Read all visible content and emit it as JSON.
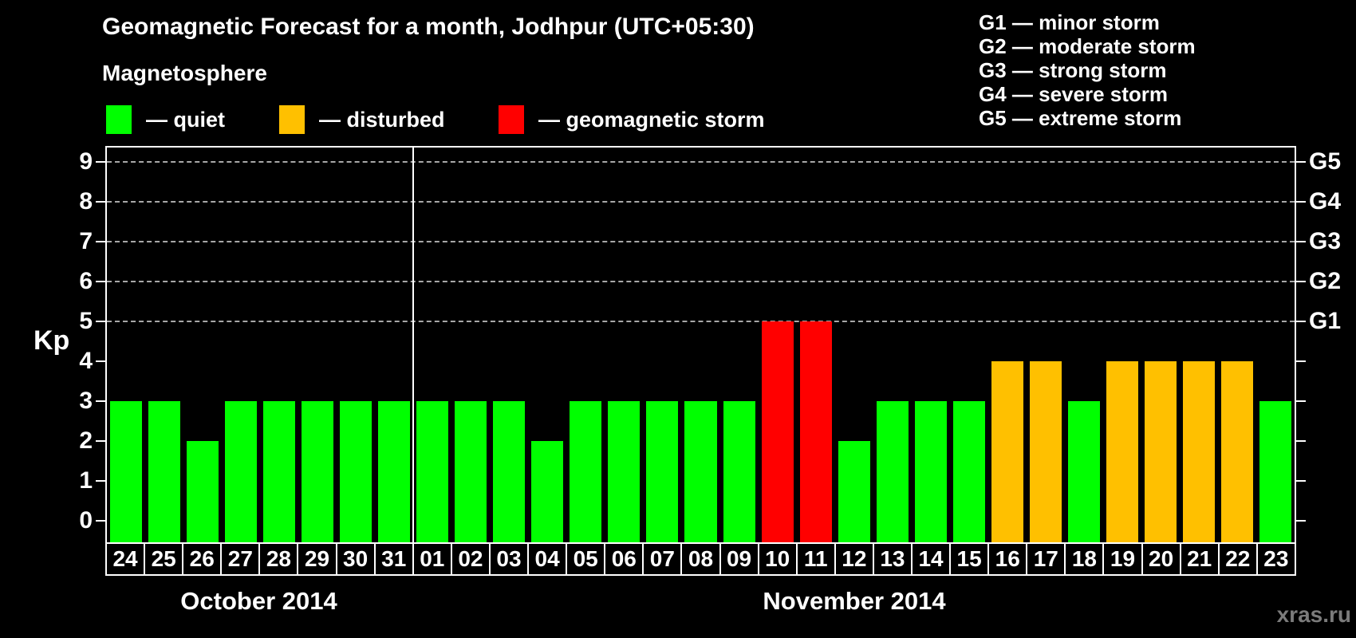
{
  "title": "Geomagnetic Forecast for a month, Jodhpur (UTC+05:30)",
  "legend": {
    "heading": "Magnetosphere",
    "items": [
      {
        "name": "quiet",
        "label": "— quiet",
        "color": "#00ff00"
      },
      {
        "name": "disturbed",
        "label": "— disturbed",
        "color": "#ffc000"
      },
      {
        "name": "storm",
        "label": "— geomagnetic storm",
        "color": "#ff0000"
      }
    ]
  },
  "g_scale_legend": [
    "G1 — minor storm",
    "G2 — moderate storm",
    "G3 — strong storm",
    "G4 — severe storm",
    "G5 — extreme storm"
  ],
  "watermark": "xras.ru",
  "chart_data": {
    "type": "bar",
    "ylabel": "Kp",
    "ylim": [
      0,
      9
    ],
    "yticks": [
      0,
      1,
      2,
      3,
      4,
      5,
      6,
      7,
      8,
      9
    ],
    "gridlines_at": [
      5,
      6,
      7,
      8,
      9
    ],
    "grid": "dashed horizontal at storm levels only",
    "right_axis": [
      {
        "kp": 5,
        "label": "G1"
      },
      {
        "kp": 6,
        "label": "G2"
      },
      {
        "kp": 7,
        "label": "G3"
      },
      {
        "kp": 8,
        "label": "G4"
      },
      {
        "kp": 9,
        "label": "G5"
      }
    ],
    "months": [
      {
        "label": "October 2014",
        "days": 8
      },
      {
        "label": "November 2014",
        "days": 23
      }
    ],
    "categories": [
      "24",
      "25",
      "26",
      "27",
      "28",
      "29",
      "30",
      "31",
      "01",
      "02",
      "03",
      "04",
      "05",
      "06",
      "07",
      "08",
      "09",
      "10",
      "11",
      "12",
      "13",
      "14",
      "15",
      "16",
      "17",
      "18",
      "19",
      "20",
      "21",
      "22",
      "23"
    ],
    "values": [
      3,
      3,
      2,
      3,
      3,
      3,
      3,
      3,
      3,
      3,
      3,
      2,
      3,
      3,
      3,
      3,
      3,
      5,
      5,
      2,
      3,
      3,
      3,
      4,
      4,
      3,
      4,
      4,
      4,
      4,
      3
    ],
    "statuses": [
      "quiet",
      "quiet",
      "quiet",
      "quiet",
      "quiet",
      "quiet",
      "quiet",
      "quiet",
      "quiet",
      "quiet",
      "quiet",
      "quiet",
      "quiet",
      "quiet",
      "quiet",
      "quiet",
      "quiet",
      "storm",
      "storm",
      "quiet",
      "quiet",
      "quiet",
      "quiet",
      "disturbed",
      "disturbed",
      "quiet",
      "disturbed",
      "disturbed",
      "disturbed",
      "disturbed",
      "quiet"
    ],
    "status_colors": {
      "quiet": "#00ff00",
      "disturbed": "#ffc000",
      "storm": "#ff0000"
    }
  }
}
